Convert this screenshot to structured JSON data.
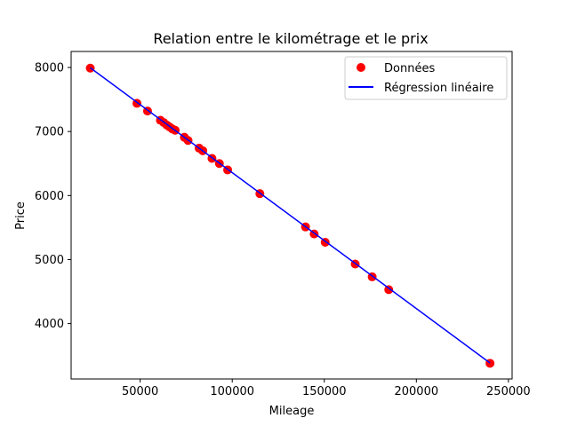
{
  "chart_data": {
    "type": "scatter",
    "title": "Relation entre le kilométrage et le prix",
    "xlabel": "Mileage",
    "ylabel": "Price",
    "xlim": [
      12500,
      252000
    ],
    "ylim": [
      3135,
      8250
    ],
    "xticks": [
      50000,
      100000,
      150000,
      200000,
      250000
    ],
    "yticks": [
      4000,
      5000,
      6000,
      7000,
      8000
    ],
    "xtick_labels": [
      "50000",
      "100000",
      "150000",
      "200000",
      "250000"
    ],
    "ytick_labels": [
      "4000",
      "5000",
      "6000",
      "7000",
      "8000"
    ],
    "legend_position": "upper right",
    "series": [
      {
        "name": "Données",
        "kind": "scatter",
        "color": "#ff0000",
        "x": [
          22899,
          48235,
          54000,
          61000,
          62800,
          64500,
          66000,
          67500,
          69000,
          74000,
          76000,
          82000,
          84000,
          89000,
          93000,
          97500,
          115000,
          139800,
          144500,
          150500,
          166800,
          176000,
          185000,
          240000
        ],
        "y": [
          7990,
          7440,
          7320,
          7175,
          7140,
          7100,
          7070,
          7040,
          7020,
          6910,
          6860,
          6740,
          6700,
          6580,
          6500,
          6400,
          6030,
          5510,
          5400,
          5270,
          4930,
          4730,
          4530,
          3380
        ]
      },
      {
        "name": "Régression linéaire",
        "kind": "line",
        "color": "#0000ff",
        "x": [
          22899,
          240000
        ],
        "y": [
          7995,
          3385
        ]
      }
    ]
  }
}
